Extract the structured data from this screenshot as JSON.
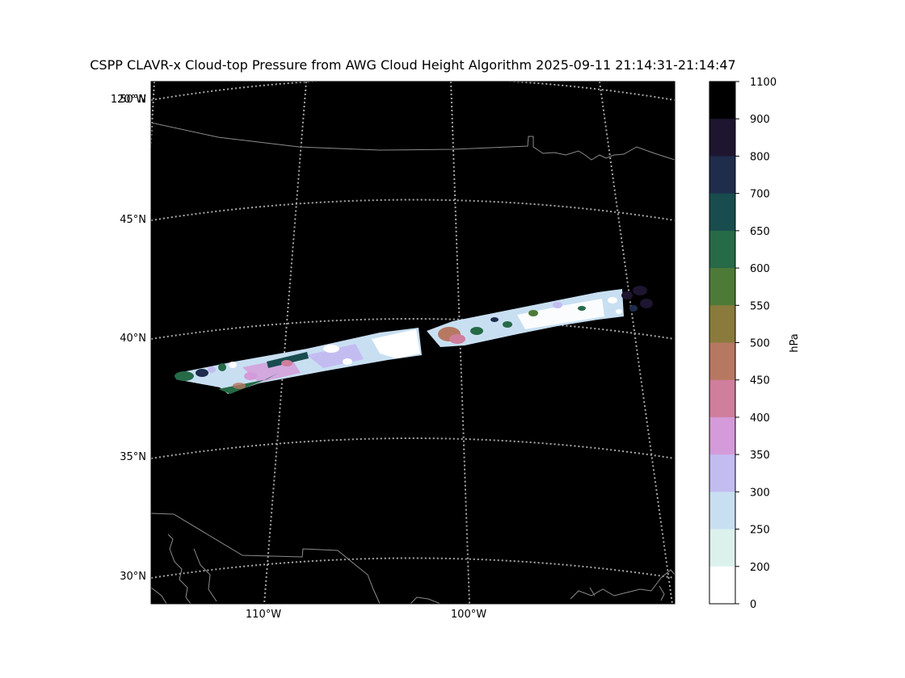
{
  "title": "CSPP CLAVR-x Cloud-top Pressure from AWG Cloud Height Algorithm 2025-09-11 21:14:31-21:14:47",
  "map": {
    "background": "#000000",
    "grid_color": "#a8a8a8",
    "border_color": "#8c8c8c",
    "lat_labels": [
      "50°N",
      "45°N",
      "40°N",
      "35°N",
      "30°N"
    ],
    "lon_labels": [
      "120°W",
      "110°W",
      "100°W"
    ]
  },
  "colorbar": {
    "label": "hPa",
    "ticks": [
      "1100",
      "900",
      "800",
      "700",
      "650",
      "600",
      "550",
      "500",
      "450",
      "400",
      "350",
      "300",
      "250",
      "200",
      "0"
    ],
    "colors": [
      "#000000",
      "#1e1530",
      "#1f2c4c",
      "#194c4e",
      "#266a47",
      "#4e7a37",
      "#8a7b3c",
      "#b77862",
      "#cf7e9c",
      "#d59ad9",
      "#c3bcf1",
      "#c8dff2",
      "#dcf1ec",
      "#ffffff"
    ]
  },
  "swath": {
    "description_colors": [
      "#c8dff2",
      "#ffffff",
      "#c3bcf1",
      "#d59ad9",
      "#266a47",
      "#194c4e",
      "#1f2c4c",
      "#b77862",
      "#1e1530"
    ]
  }
}
